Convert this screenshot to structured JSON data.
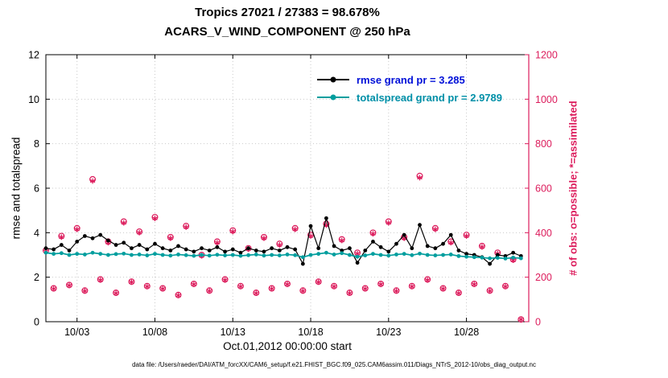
{
  "chart": {
    "title_line1": "Tropics 27021 / 27383 = 98.678%",
    "title_line2": "ACARS_V_WIND_COMPONENT @ 250 hPa",
    "xlabel": "Oct.01,2012 00:00:00 start",
    "ylabel_left": "rmse and totalspread",
    "ylabel_right": "# of obs: o=possible; *=assimilated",
    "footer": "data file: /Users/raeder/DAI/ATM_forcXX/CAM6_setup/f.e21.FHIST_BGC.f09_025.CAM6assim.011/Diags_NTrS_2012-10/obs_diag_output.nc",
    "colors": {
      "rmse_line": "#000000",
      "totalspread_line": "#009e9e",
      "obs": "#dc1c5c",
      "grid": "#c9c9c9",
      "legend_rmse_text": "#0010d8",
      "legend_totalspread_text": "#0090a8"
    }
  },
  "chart_data": {
    "type": "line",
    "title": "Tropics 27021 / 27383 = 98.678% | ACARS_V_WIND_COMPONENT @ 250 hPa",
    "xlabel": "Oct.01,2012 00:00:00 start",
    "ylabel_left": "rmse and totalspread",
    "ylabel_right": "# of obs: o=possible; *=assimilated",
    "xlim": [
      1,
      32
    ],
    "ylim_left": [
      0,
      12
    ],
    "ylim_right": [
      0,
      1200
    ],
    "grid": true,
    "legend_position": "top-center-inside",
    "xticks": {
      "positions": [
        3,
        8,
        13,
        18,
        23,
        28
      ],
      "labels": [
        "10/03",
        "10/08",
        "10/13",
        "10/18",
        "10/23",
        "10/28"
      ]
    },
    "yticks_left": [
      0,
      2,
      4,
      6,
      8,
      10,
      12
    ],
    "yticks_right": [
      0,
      200,
      400,
      600,
      800,
      1000,
      1200
    ],
    "x_days": [
      1,
      1.5,
      2,
      2.5,
      3,
      3.5,
      4,
      4.5,
      5,
      5.5,
      6,
      6.5,
      7,
      7.5,
      8,
      8.5,
      9,
      9.5,
      10,
      10.5,
      11,
      11.5,
      12,
      12.5,
      13,
      13.5,
      14,
      14.5,
      15,
      15.5,
      16,
      16.5,
      17,
      17.5,
      18,
      18.5,
      19,
      19.5,
      20,
      20.5,
      21,
      21.5,
      22,
      22.5,
      23,
      23.5,
      24,
      24.5,
      25,
      25.5,
      26,
      26.5,
      27,
      27.5,
      28,
      28.5,
      29,
      29.5,
      30,
      30.5,
      31,
      31.5
    ],
    "series": [
      {
        "name": "rmse grand pr = 3.285",
        "axis": "left",
        "marker": "dot",
        "color": "#000000",
        "values": [
          3.3,
          3.25,
          3.45,
          3.2,
          3.6,
          3.85,
          3.75,
          3.9,
          3.65,
          3.45,
          3.55,
          3.3,
          3.45,
          3.25,
          3.5,
          3.3,
          3.2,
          3.4,
          3.25,
          3.15,
          3.3,
          3.2,
          3.35,
          3.15,
          3.25,
          3.1,
          3.3,
          3.2,
          3.15,
          3.3,
          3.2,
          3.35,
          3.25,
          2.6,
          4.3,
          3.3,
          4.65,
          3.4,
          3.2,
          3.3,
          2.65,
          3.2,
          3.6,
          3.35,
          3.15,
          3.5,
          3.9,
          3.3,
          4.35,
          3.4,
          3.3,
          3.5,
          3.9,
          3.2,
          3.05,
          3.0,
          2.9,
          2.6,
          3.0,
          2.95,
          3.1,
          2.95
        ]
      },
      {
        "name": "totalspread grand pr = 2.9789",
        "axis": "left",
        "marker": "dot",
        "color": "#009e9e",
        "values": [
          3.1,
          3.05,
          3.08,
          3.0,
          3.05,
          3.02,
          3.1,
          3.05,
          3.0,
          3.04,
          3.06,
          3.0,
          3.02,
          2.98,
          3.05,
          3.0,
          2.97,
          3.02,
          2.99,
          2.96,
          3.0,
          2.97,
          3.01,
          2.98,
          3.0,
          2.96,
          2.99,
          3.02,
          2.97,
          3.0,
          2.98,
          3.02,
          2.99,
          2.9,
          3.0,
          3.05,
          3.1,
          3.02,
          3.08,
          3.0,
          2.92,
          2.98,
          3.05,
          3.0,
          2.97,
          3.02,
          3.05,
          2.99,
          3.06,
          3.0,
          2.98,
          3.0,
          3.02,
          2.95,
          2.92,
          2.9,
          2.88,
          2.85,
          2.87,
          2.84,
          2.88,
          2.85
        ]
      },
      {
        "name": "possible obs",
        "axis": "right",
        "marker": "o",
        "color": "#dc1c5c",
        "values": [
          320,
          150,
          385,
          165,
          420,
          140,
          640,
          190,
          360,
          130,
          450,
          180,
          405,
          160,
          470,
          150,
          380,
          120,
          430,
          170,
          300,
          140,
          360,
          190,
          410,
          160,
          330,
          130,
          380,
          150,
          350,
          170,
          420,
          140,
          390,
          180,
          440,
          160,
          370,
          130,
          310,
          150,
          400,
          170,
          450,
          140,
          380,
          160,
          655,
          190,
          420,
          150,
          360,
          130,
          390,
          170,
          340,
          140,
          310,
          160,
          280,
          10
        ]
      },
      {
        "name": "assimilated obs",
        "axis": "right",
        "marker": "star",
        "color": "#dc1c5c",
        "values": [
          316,
          148,
          380,
          163,
          415,
          138,
          632,
          187,
          355,
          128,
          444,
          178,
          400,
          158,
          464,
          148,
          375,
          118,
          425,
          168,
          296,
          138,
          355,
          187,
          405,
          158,
          326,
          128,
          375,
          148,
          345,
          168,
          415,
          138,
          385,
          178,
          434,
          158,
          365,
          128,
          306,
          148,
          395,
          168,
          444,
          138,
          375,
          158,
          647,
          187,
          415,
          148,
          355,
          128,
          385,
          168,
          336,
          138,
          306,
          158,
          276,
          10
        ]
      }
    ]
  }
}
